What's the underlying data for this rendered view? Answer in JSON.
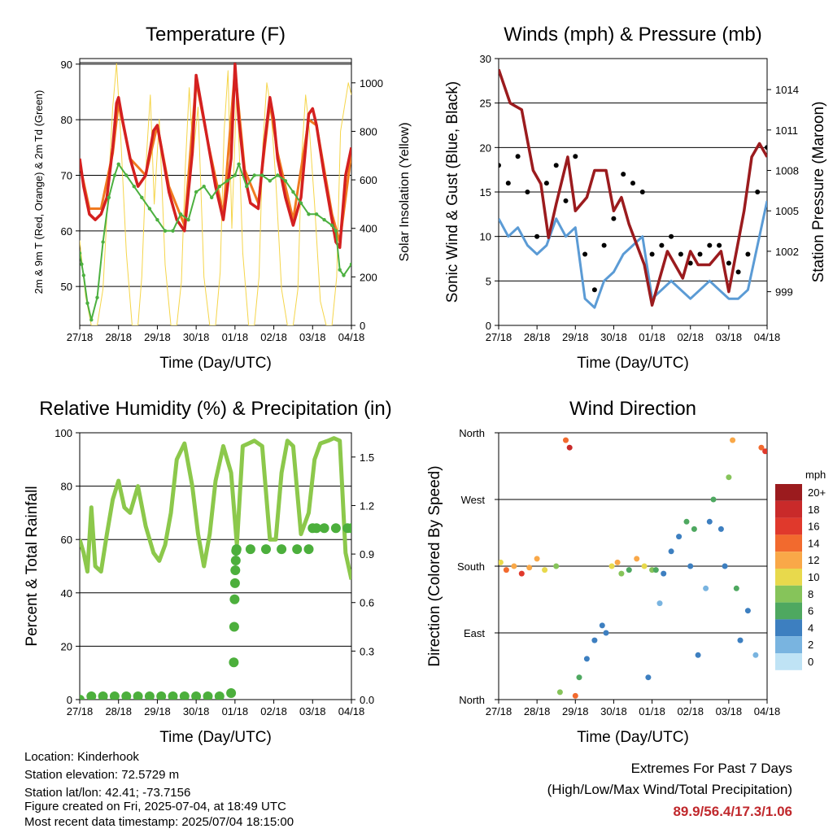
{
  "colors": {
    "temp_red": "#d42020",
    "temp_orange": "#f07a20",
    "dewpoint_green": "#4cb040",
    "solar_yellow": "#f5d54a",
    "wind_blue": "#5b9bd5",
    "gust_black": "#000000",
    "pressure_maroon": "#9b1b1e",
    "rh_green": "#8cc84b",
    "precip_green": "#4caf3c",
    "extremes_red": "#c0282c"
  },
  "x_tick_labels": [
    "27/18",
    "28/18",
    "29/18",
    "30/18",
    "01/18",
    "02/18",
    "03/18",
    "04/18"
  ],
  "chart_data": [
    {
      "type": "line",
      "title": "Temperature (F)",
      "xlabel": "Time (Day/UTC)",
      "ylabel": "2m & 9m T (Red, Orange) & 2m Td (Green)",
      "y2label": "Solar Insolation (Yellow)",
      "ylim": [
        43,
        91
      ],
      "y_ticks": [
        50,
        60,
        70,
        80,
        90
      ],
      "y2lim": [
        0,
        1100
      ],
      "y2_ticks": [
        0,
        200,
        400,
        600,
        800,
        1000
      ],
      "grid": true,
      "series": [
        {
          "key": "t2m",
          "x": [
            0,
            0.1,
            0.25,
            0.4,
            0.55,
            0.7,
            0.85,
            0.95,
            1,
            1.1,
            1.3,
            1.5,
            1.7,
            1.9,
            2.0,
            2.1,
            2.3,
            2.5,
            2.7,
            2.9,
            3.0,
            3.1,
            3.3,
            3.5,
            3.7,
            3.9,
            4.0,
            4.1,
            4.25,
            4.4,
            4.6,
            4.75,
            4.9,
            5.0,
            5.1,
            5.3,
            5.5,
            5.7,
            5.9,
            6.0,
            6.1,
            6.3,
            6.5,
            6.6,
            6.7,
            6.85,
            7.0
          ],
          "y": [
            73,
            68,
            63,
            62,
            63,
            66,
            75,
            83,
            84,
            80,
            73,
            68,
            70,
            78,
            79,
            75,
            67,
            62,
            60,
            74,
            88,
            84,
            76,
            68,
            62,
            73,
            90,
            80,
            70,
            65,
            64,
            75,
            84,
            80,
            73,
            66,
            61,
            66,
            81,
            82,
            79,
            70,
            62,
            58,
            57,
            70,
            75
          ]
        },
        {
          "key": "t9m",
          "x": [
            0,
            0.25,
            0.55,
            0.85,
            1,
            1.3,
            1.7,
            2.0,
            2.3,
            2.7,
            3.0,
            3.3,
            3.7,
            4.0,
            4.25,
            4.6,
            4.9,
            5.1,
            5.5,
            5.9,
            6.1,
            6.5,
            6.7,
            7.0
          ],
          "y": [
            72,
            64,
            64,
            74,
            83,
            73,
            70,
            79,
            68,
            61,
            87,
            76,
            63,
            89,
            71,
            65,
            83,
            74,
            62,
            80,
            79,
            63,
            58,
            74
          ]
        },
        {
          "key": "td2m",
          "x": [
            0,
            0.05,
            0.1,
            0.2,
            0.3,
            0.45,
            0.6,
            0.75,
            0.9,
            1.0,
            1.2,
            1.4,
            1.6,
            1.8,
            2.0,
            2.2,
            2.4,
            2.6,
            2.8,
            3.0,
            3.2,
            3.4,
            3.6,
            3.8,
            4.0,
            4.1,
            4.3,
            4.5,
            4.7,
            4.9,
            5.1,
            5.3,
            5.5,
            5.7,
            5.9,
            6.1,
            6.3,
            6.5,
            6.6,
            6.7,
            6.8,
            7.0
          ],
          "y": [
            56,
            54,
            52,
            47,
            44,
            48,
            58,
            66,
            70,
            72,
            70,
            68,
            66,
            64,
            62,
            60,
            60,
            63,
            62,
            67,
            68,
            66,
            68,
            69,
            70,
            72,
            68,
            70,
            70,
            69,
            70,
            69,
            67,
            65,
            63,
            63,
            62,
            61,
            60,
            53,
            52,
            54
          ]
        },
        {
          "key": "solar",
          "x": [
            0,
            0.15,
            0.3,
            0.45,
            0.6,
            0.75,
            0.85,
            0.95,
            1.05,
            1.2,
            1.35,
            1.5,
            1.6,
            1.72,
            1.82,
            1.92,
            2.05,
            2.2,
            2.35,
            2.5,
            2.62,
            2.72,
            2.82,
            2.92,
            3.05,
            3.2,
            3.35,
            3.5,
            3.62,
            3.72,
            3.82,
            3.92,
            4.05,
            4.2,
            4.35,
            4.5,
            4.62,
            4.72,
            4.82,
            4.92,
            5.05,
            5.2,
            5.35,
            5.5,
            5.62,
            5.72,
            5.82,
            5.92,
            6.05,
            6.2,
            6.35,
            6.5,
            6.62,
            6.72,
            6.82,
            6.92,
            7.0
          ],
          "y": [
            350,
            120,
            0,
            0,
            150,
            600,
            900,
            1080,
            800,
            300,
            0,
            0,
            200,
            700,
            950,
            500,
            850,
            250,
            0,
            0,
            180,
            650,
            980,
            700,
            900,
            200,
            0,
            0,
            220,
            800,
            1050,
            400,
            1000,
            300,
            0,
            0,
            200,
            750,
            1000,
            900,
            600,
            150,
            0,
            0,
            150,
            700,
            950,
            800,
            500,
            100,
            0,
            0,
            200,
            800,
            900,
            1000,
            950
          ]
        }
      ]
    },
    {
      "type": "scatter",
      "title": "Winds (mph) & Pressure (mb)",
      "xlabel": "Time (Day/UTC)",
      "ylabel": "Sonic Wind & Gust (Blue, Black)",
      "y2label": "Station Pressure (Maroon)",
      "ylim": [
        0,
        30
      ],
      "y_ticks": [
        0,
        5,
        10,
        15,
        20,
        25,
        30
      ],
      "y2lim": [
        996.5,
        1016.3
      ],
      "y2_ticks": [
        999,
        1002,
        1005,
        1008,
        1011,
        1014
      ],
      "grid": true,
      "series": [
        {
          "key": "wind",
          "x": [
            0,
            0.25,
            0.5,
            0.75,
            1.0,
            1.25,
            1.5,
            1.75,
            2.0,
            2.25,
            2.5,
            2.75,
            3.0,
            3.25,
            3.5,
            3.75,
            4.0,
            4.25,
            4.5,
            4.75,
            5.0,
            5.25,
            5.5,
            5.75,
            6.0,
            6.25,
            6.5,
            6.75,
            7.0
          ],
          "y": [
            12,
            10,
            11,
            9,
            8,
            9,
            12,
            10,
            11,
            3,
            2,
            5,
            6,
            8,
            9,
            10,
            3,
            4,
            5,
            4,
            3,
            4,
            5,
            4,
            3,
            3,
            4,
            9,
            14
          ]
        },
        {
          "key": "gust",
          "x": [
            0,
            0.25,
            0.5,
            0.75,
            1.0,
            1.25,
            1.5,
            1.75,
            2.0,
            2.25,
            2.5,
            2.75,
            3.0,
            3.25,
            3.5,
            3.75,
            4.0,
            4.25,
            4.5,
            4.75,
            5.0,
            5.25,
            5.5,
            5.75,
            6.0,
            6.25,
            6.5,
            6.75,
            7.0
          ],
          "y": [
            18,
            16,
            19,
            15,
            10,
            16,
            18,
            14,
            19,
            8,
            4,
            9,
            12,
            17,
            16,
            15,
            8,
            9,
            10,
            8,
            7,
            8,
            9,
            9,
            7,
            6,
            8,
            15,
            20
          ]
        },
        {
          "key": "pressure",
          "x": [
            0,
            0.3,
            0.6,
            0.9,
            1.1,
            1.3,
            1.5,
            1.8,
            2.0,
            2.3,
            2.5,
            2.8,
            3.0,
            3.2,
            3.4,
            3.6,
            3.8,
            4.0,
            4.2,
            4.4,
            4.6,
            4.8,
            5.0,
            5.2,
            5.5,
            5.8,
            6.0,
            6.2,
            6.4,
            6.6,
            6.8,
            7.0
          ],
          "y": [
            1015.5,
            1013,
            1012.5,
            1008,
            1007,
            1003,
            1005.5,
            1009,
            1005,
            1006,
            1008,
            1008,
            1005,
            1006,
            1004,
            1002.5,
            1001,
            998,
            1000,
            1002,
            1001,
            1000,
            1002,
            1001,
            1001,
            1002,
            999,
            1002,
            1005,
            1009,
            1010,
            1009
          ]
        }
      ]
    },
    {
      "type": "line",
      "title": "Relative Humidity (%) & Precipitation (in)",
      "xlabel": "Time (Day/UTC)",
      "ylabel": "Percent & Total Rainfall",
      "ylim": [
        0,
        100
      ],
      "y_ticks": [
        0,
        20,
        40,
        60,
        80,
        100
      ],
      "y2lim": [
        0,
        1.65
      ],
      "y2_ticks": [
        0.0,
        0.3,
        0.6,
        0.9,
        1.2,
        1.5
      ],
      "grid": true,
      "series": [
        {
          "key": "rh",
          "x": [
            0,
            0.1,
            0.2,
            0.3,
            0.4,
            0.55,
            0.7,
            0.85,
            1.0,
            1.15,
            1.3,
            1.5,
            1.7,
            1.9,
            2.05,
            2.2,
            2.35,
            2.5,
            2.7,
            2.9,
            3.05,
            3.2,
            3.35,
            3.5,
            3.7,
            3.9,
            4.05,
            4.2,
            4.35,
            4.5,
            4.7,
            4.9,
            5.05,
            5.2,
            5.35,
            5.5,
            5.7,
            5.9,
            6.05,
            6.2,
            6.4,
            6.55,
            6.7,
            6.85,
            7.0
          ],
          "y": [
            60,
            55,
            48,
            72,
            50,
            48,
            62,
            75,
            82,
            72,
            70,
            80,
            65,
            55,
            52,
            58,
            70,
            90,
            96,
            80,
            62,
            50,
            62,
            82,
            95,
            85,
            58,
            95,
            96,
            97,
            95,
            60,
            60,
            85,
            97,
            95,
            62,
            70,
            90,
            96,
            97,
            98,
            97,
            55,
            45
          ]
        },
        {
          "key": "precip",
          "x": [
            0,
            0.3,
            0.6,
            0.9,
            1.2,
            1.5,
            1.8,
            2.1,
            2.4,
            2.7,
            3.0,
            3.3,
            3.6,
            3.9,
            3.97,
            3.98,
            3.99,
            4.0,
            4.01,
            4.02,
            4.03,
            4.04,
            4.4,
            4.8,
            5.2,
            5.6,
            5.9,
            6.0,
            6.1,
            6.3,
            6.6,
            6.9,
            7.0
          ],
          "y": [
            0.0,
            0.02,
            0.02,
            0.02,
            0.02,
            0.02,
            0.02,
            0.02,
            0.02,
            0.02,
            0.02,
            0.02,
            0.02,
            0.04,
            0.23,
            0.45,
            0.62,
            0.72,
            0.8,
            0.86,
            0.92,
            0.93,
            0.93,
            0.93,
            0.93,
            0.93,
            0.93,
            1.06,
            1.06,
            1.06,
            1.06,
            1.06,
            1.06
          ]
        }
      ]
    },
    {
      "type": "scatter",
      "title": "Wind Direction",
      "xlabel": "Time (Day/UTC)",
      "ylabel": "Direction (Colored By Speed)",
      "y_ticks": [
        "North",
        "East",
        "South",
        "West",
        "North"
      ],
      "ylim": [
        0,
        360
      ],
      "legend": {
        "title": "mph",
        "position": "right",
        "labels": [
          "20+",
          "18",
          "16",
          "14",
          "12",
          "10",
          "8",
          "6",
          "4",
          "2",
          "0"
        ],
        "colors": [
          "#9b1b1e",
          "#c92a2a",
          "#e0392c",
          "#f26a2e",
          "#f9a848",
          "#e8d94c",
          "#86c45a",
          "#4ea860",
          "#3d7fc0",
          "#79b4e0",
          "#bfe3f5"
        ]
      },
      "series": [
        {
          "key": "dir",
          "x": [
            0.05,
            0.2,
            0.4,
            0.6,
            0.8,
            1.0,
            1.2,
            1.5,
            1.6,
            1.75,
            1.85,
            2.0,
            2.1,
            2.3,
            2.5,
            2.7,
            2.8,
            2.95,
            3.1,
            3.2,
            3.4,
            3.6,
            3.8,
            3.9,
            4.0,
            4.1,
            4.2,
            4.3,
            4.5,
            4.7,
            4.9,
            5.0,
            5.1,
            5.2,
            5.4,
            5.5,
            5.6,
            5.8,
            5.9,
            6.0,
            6.1,
            6.2,
            6.3,
            6.5,
            6.7,
            6.85,
            6.95
          ],
          "y": [
            185,
            175,
            180,
            170,
            178,
            190,
            175,
            180,
            10,
            350,
            340,
            5,
            30,
            55,
            80,
            100,
            90,
            180,
            185,
            170,
            175,
            190,
            180,
            30,
            175,
            175,
            130,
            170,
            200,
            220,
            240,
            180,
            230,
            60,
            150,
            240,
            270,
            230,
            180,
            300,
            350,
            150,
            80,
            120,
            60,
            340,
            335
          ],
          "speed": [
            10,
            14,
            12,
            16,
            12,
            11,
            9,
            8,
            8,
            14,
            18,
            13,
            6,
            4,
            3,
            4,
            3,
            10,
            12,
            7,
            5,
            11,
            9,
            4,
            8,
            5,
            2,
            4,
            3,
            4,
            5,
            3,
            6,
            4,
            2,
            3,
            5,
            4,
            3,
            8,
            12,
            5,
            4,
            3,
            2,
            14,
            16
          ]
        }
      ]
    }
  ],
  "info": {
    "location": "Location: Kinderhook",
    "elevation": "Station elevation: 72.5729 m",
    "latlon": "Station lat/lon: 42.41; -73.7156",
    "created": "Figure created on Fri, 2025-07-04, at 18:49 UTC",
    "recent": "Most recent data timestamp: 2025/07/04 18:15:00"
  },
  "extremes": {
    "title": "Extremes For Past 7 Days",
    "subtitle": "(High/Low/Max Wind/Total Precipitation)",
    "values": "89.9/56.4/17.3/1.06"
  }
}
